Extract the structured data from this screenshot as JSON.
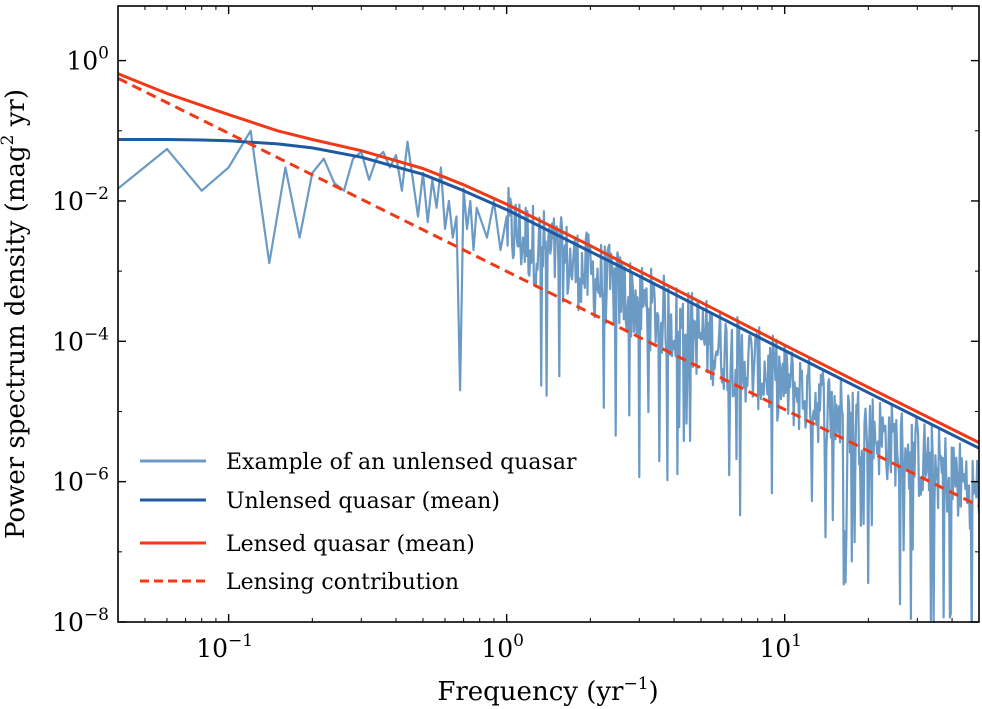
{
  "chart_data": {
    "type": "line",
    "xscale": "log",
    "yscale": "log",
    "xlim": [
      0.04,
      50
    ],
    "ylim": [
      1e-08,
      6
    ],
    "xlabel": {
      "main": "Frequency (yr",
      "sup": "−1",
      "tail": ")"
    },
    "ylabel": {
      "main": "Power spectrum density (mag",
      "sup": "2",
      "tail": " yr)"
    },
    "x_ticks": [
      {
        "value": 0.1,
        "base": "10",
        "exp": "−1"
      },
      {
        "value": 1,
        "base": "10",
        "exp": "0"
      },
      {
        "value": 10,
        "base": "10",
        "exp": "1"
      }
    ],
    "y_ticks": [
      {
        "value": 1,
        "base": "10",
        "exp": "0"
      },
      {
        "value": 0.01,
        "base": "10",
        "exp": "−2"
      },
      {
        "value": 0.0001,
        "base": "10",
        "exp": "−4"
      },
      {
        "value": 1e-06,
        "base": "10",
        "exp": "−6"
      },
      {
        "value": 1e-08,
        "base": "10",
        "exp": "−8"
      }
    ],
    "grid": false,
    "legend_position": "lower-left",
    "series": [
      {
        "name": "Example of an unlensed quasar",
        "color": "#6b9ac4",
        "style": "solid",
        "kind": "noisy-periodogram",
        "x": [
          0.04,
          0.06,
          0.08,
          0.1,
          0.12,
          0.14,
          0.16,
          0.18,
          0.2,
          0.22,
          0.24,
          0.26,
          0.28,
          0.3,
          0.32,
          0.34,
          0.36,
          0.38,
          0.4,
          0.42,
          0.44,
          0.46,
          0.48,
          0.5,
          0.52,
          0.54,
          0.56,
          0.58,
          0.6,
          0.62,
          0.64,
          0.66,
          0.68,
          0.7,
          0.72,
          0.74,
          0.76,
          0.78,
          0.8,
          0.85,
          0.9,
          0.95,
          1.0
        ],
        "values": [
          0.015,
          0.055,
          0.014,
          0.03,
          0.1,
          0.0013,
          0.03,
          0.003,
          0.025,
          0.04,
          0.018,
          0.014,
          0.04,
          0.05,
          0.02,
          0.04,
          0.05,
          0.03,
          0.045,
          0.014,
          0.07,
          0.02,
          0.006,
          0.025,
          0.005,
          0.02,
          0.008,
          0.03,
          0.004,
          0.01,
          0.003,
          0.006,
          2e-05,
          0.015,
          0.004,
          0.01,
          0.002,
          0.008,
          0.006,
          0.003,
          0.01,
          0.002,
          0.006
        ],
        "trend_from_x": 1.0,
        "trend_to_x": 50,
        "trend_values": [
          0.0056,
          1e-06
        ],
        "scatter_decades": 1.2
      },
      {
        "name": "Unlensed quasar (mean)",
        "color": "#1f5aa0",
        "style": "solid",
        "x": [
          0.04,
          0.06,
          0.08,
          0.1,
          0.15,
          0.2,
          0.3,
          0.5,
          0.7,
          1.0,
          2.0,
          3.0,
          5.0,
          10,
          20,
          50
        ],
        "values": [
          0.075,
          0.075,
          0.074,
          0.072,
          0.065,
          0.057,
          0.042,
          0.024,
          0.014,
          0.0075,
          0.0019,
          0.00085,
          0.0003,
          7.4e-05,
          1.85e-05,
          3e-06
        ]
      },
      {
        "name": "Lensed quasar (mean)",
        "color": "#f03a17",
        "style": "solid",
        "x": [
          0.04,
          0.06,
          0.08,
          0.1,
          0.15,
          0.2,
          0.3,
          0.5,
          0.7,
          1.0,
          2.0,
          3.0,
          5.0,
          10,
          20,
          50
        ],
        "values": [
          0.65,
          0.34,
          0.23,
          0.17,
          0.1,
          0.075,
          0.052,
          0.029,
          0.017,
          0.009,
          0.0023,
          0.001,
          0.00036,
          8.8e-05,
          2.2e-05,
          3.6e-06
        ]
      },
      {
        "name": "Lensing contribution",
        "color": "#f03a17",
        "style": "dashed",
        "x": [
          0.04,
          50
        ],
        "values": [
          0.56,
          4.5e-07
        ]
      }
    ]
  }
}
